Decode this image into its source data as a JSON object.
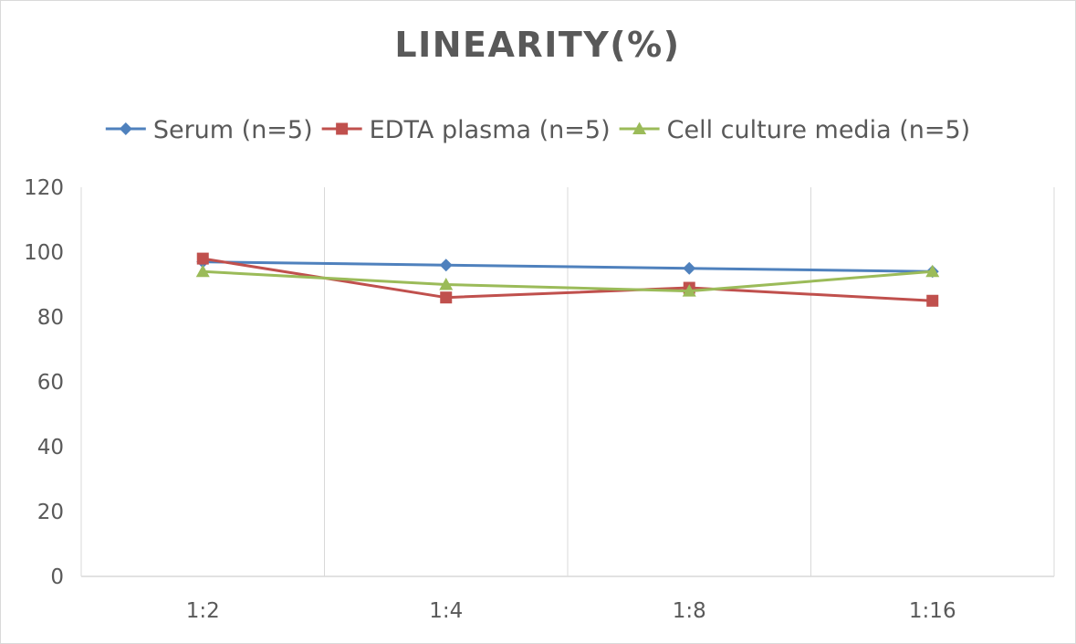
{
  "chart_data": {
    "type": "line",
    "title": "LINEARITY(%)",
    "xlabel": "",
    "ylabel": "",
    "categories": [
      "1:2",
      "1:4",
      "1:8",
      "1:16"
    ],
    "ylim": [
      0,
      120
    ],
    "yticks": [
      0,
      20,
      40,
      60,
      80,
      100,
      120
    ],
    "grid": "vertical",
    "legend_position": "top",
    "series": [
      {
        "name": "Serum (n=5)",
        "values": [
          97,
          96,
          95,
          94
        ],
        "color": "#4f81bd",
        "marker": "diamond"
      },
      {
        "name": "EDTA plasma (n=5)",
        "values": [
          98,
          86,
          89,
          85
        ],
        "color": "#c0504d",
        "marker": "square"
      },
      {
        "name": "Cell culture media (n=5)",
        "values": [
          94,
          90,
          88,
          94
        ],
        "color": "#9bbb59",
        "marker": "triangle"
      }
    ]
  }
}
